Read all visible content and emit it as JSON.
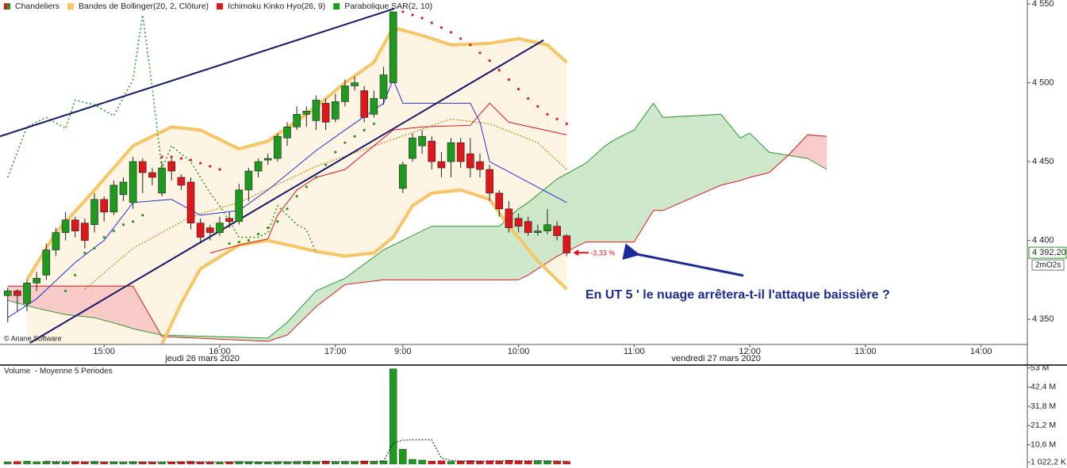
{
  "chart_data": [
    {
      "type": "candlestick",
      "legend": [
        {
          "label": "Chandeliers"
        },
        {
          "label": "Bandes de Bollinger(20, 2, Clôture)",
          "color": "#f5c66a"
        },
        {
          "label": "Ichimoku Kinko Hyo(26, 9)",
          "color": "#e0161b"
        },
        {
          "label": "Parabolique SAR(2, 10)",
          "color": "#1e9b1e"
        }
      ],
      "up_color": "#1e9b1e",
      "down_color": "#e0161b",
      "x": [
        0,
        1,
        2,
        3,
        4,
        5,
        6,
        7,
        8,
        9,
        10,
        11,
        12,
        13,
        14,
        15,
        16,
        17,
        18,
        19,
        20,
        21,
        22,
        23,
        24,
        25,
        26,
        27,
        28,
        29,
        30,
        31,
        32,
        33,
        34,
        35,
        36,
        37,
        38,
        39,
        40,
        41,
        42,
        43,
        44,
        45,
        46,
        47,
        48,
        49,
        50,
        51,
        52,
        53,
        54,
        55,
        56,
        57,
        58
      ],
      "open": [
        4365,
        4368,
        4360,
        4373,
        4378,
        4394,
        4405,
        4413,
        4411,
        4410,
        4426,
        4418,
        4429,
        4424,
        4450,
        4443,
        4430,
        4450,
        4440,
        4437,
        4411,
        4408,
        4405,
        4414,
        4412,
        4432,
        4444,
        4451,
        4452,
        4465,
        4472,
        4480,
        4476,
        4487,
        4477,
        4488,
        4498,
        4495,
        4480,
        4490,
        4500,
        4433,
        4452,
        4460,
        4463,
        4450,
        4450,
        4462,
        4455,
        4450,
        4445,
        4430,
        4420,
        4414,
        4412,
        4405,
        4406,
        4409,
        4403
      ],
      "high": [
        4370,
        4369,
        4375,
        4380,
        4398,
        4408,
        4418,
        4415,
        4414,
        4430,
        4428,
        4438,
        4440,
        4453,
        4452,
        4446,
        4450,
        4452,
        4442,
        4440,
        4414,
        4410,
        4415,
        4418,
        4436,
        4446,
        4452,
        4455,
        4468,
        4475,
        4485,
        4485,
        4492,
        4490,
        4493,
        4502,
        4504,
        4498,
        4495,
        4510,
        4545,
        4450,
        4468,
        4470,
        4466,
        4456,
        4465,
        4465,
        4465,
        4455,
        4448,
        4432,
        4425,
        4417,
        4415,
        4410,
        4420,
        4412,
        4404
      ],
      "low": [
        4348,
        4355,
        4355,
        4368,
        4375,
        4390,
        4400,
        4402,
        4395,
        4405,
        4412,
        4416,
        4425,
        4420,
        4430,
        4435,
        4428,
        4438,
        4432,
        4407,
        4398,
        4400,
        4403,
        4408,
        4410,
        4425,
        4440,
        4448,
        4450,
        4460,
        4470,
        4472,
        4470,
        4470,
        4475,
        4485,
        4495,
        4475,
        4478,
        4486,
        4500,
        4430,
        4450,
        4455,
        4445,
        4440,
        4440,
        4446,
        4440,
        4440,
        4425,
        4415,
        4405,
        4405,
        4403,
        4403,
        4404,
        4400,
        4390
      ],
      "close": [
        4368,
        4365,
        4373,
        4376,
        4394,
        4405,
        4413,
        4406,
        4400,
        4426,
        4418,
        4435,
        4437,
        4450,
        4443,
        4440,
        4446,
        4444,
        4435,
        4411,
        4402,
        4405,
        4411,
        4412,
        4432,
        4444,
        4450,
        4452,
        4466,
        4472,
        4480,
        4482,
        4489,
        4475,
        4488,
        4498,
        4500,
        4478,
        4490,
        4505,
        4545,
        4448,
        4465,
        4466,
        4450,
        4446,
        4462,
        4450,
        4446,
        4445,
        4430,
        4420,
        4408,
        4409,
        4405,
        4406,
        4410,
        4403,
        4392
      ],
      "xlim": [
        -0.8,
        105.8
      ],
      "xticks": [
        {
          "value": 10,
          "label": "15:00"
        },
        {
          "value": 22,
          "label": "16:00"
        },
        {
          "value": 34,
          "label": "17:00"
        },
        {
          "value": 41,
          "label": "9:00"
        },
        {
          "value": 53,
          "label": "10:00"
        },
        {
          "value": 65,
          "label": "11:00"
        },
        {
          "value": 77,
          "label": "12:00"
        },
        {
          "value": 89,
          "label": "13:00"
        },
        {
          "value": 101,
          "label": "14:00"
        }
      ],
      "date_labels": [
        {
          "value": 20.2,
          "label": "jeudi 26 mars 2020"
        },
        {
          "value": 73.5,
          "label": "vendredi 27 mars 2020"
        }
      ],
      "ylim": [
        4334,
        4552.5
      ],
      "yticks": [
        {
          "value": 4350,
          "label": "4 350"
        },
        {
          "value": 4400,
          "label": "4 400"
        },
        {
          "value": 4450,
          "label": "4 450"
        },
        {
          "value": 4500,
          "label": "4 500"
        },
        {
          "value": 4550,
          "label": "4 550"
        }
      ],
      "bollinger": {
        "color": "#f7c563",
        "middle_color": "#b8860b",
        "fill_color": "#fdf4e3",
        "upper": {
          "x": [
            2,
            5,
            9,
            13,
            17,
            20,
            24,
            27,
            31,
            35,
            38,
            40,
            43,
            46,
            50,
            53,
            56,
            58
          ],
          "values": [
            4375,
            4405,
            4432,
            4460,
            4472,
            4470,
            4458,
            4463,
            4480,
            4500,
            4513,
            4535,
            4530,
            4524,
            4525,
            4528,
            4524,
            4513
          ]
        },
        "lower": {
          "x": [
            16,
            18,
            20,
            24,
            27,
            32,
            35,
            38,
            40,
            42,
            44,
            47,
            50,
            52,
            55,
            58
          ],
          "values": [
            4334,
            4360,
            4382,
            4397,
            4400,
            4393,
            4390,
            4392,
            4402,
            4422,
            4430,
            4432,
            4426,
            4409,
            4387,
            4369
          ]
        },
        "middle": {
          "x": [
            8,
            13,
            19,
            24,
            32,
            39,
            46,
            50,
            55,
            58
          ],
          "values": [
            4369,
            4395,
            4415,
            4424,
            4447,
            4462,
            4477,
            4474,
            4462,
            4445
          ]
        }
      },
      "ichimoku": {
        "tenkan": {
          "color": "#2233dd",
          "x": [
            0,
            3,
            7,
            10,
            13,
            17,
            20,
            24,
            27,
            32,
            35,
            39,
            40,
            41,
            48,
            49,
            50,
            54,
            58
          ],
          "values": [
            4351,
            4363,
            4386,
            4400,
            4424,
            4426,
            4416,
            4419,
            4432,
            4457,
            4470,
            4487,
            4502,
            4487,
            4487,
            4475,
            4450,
            4437,
            4424
          ]
        },
        "kijun": {
          "color": "#e0161b",
          "x": [
            21,
            24,
            27,
            28,
            30,
            32,
            35,
            40,
            43,
            48,
            50,
            52,
            58
          ],
          "values": [
            4392,
            4397,
            4401,
            4416,
            4432,
            4440,
            4445,
            4470,
            4472,
            4473,
            4487,
            4475,
            4467
          ]
        },
        "chikou": {
          "color": "#1e9b1e",
          "x": [
            0,
            2,
            4,
            6,
            7,
            9,
            11,
            13,
            14,
            15,
            16,
            17,
            19,
            21,
            22,
            24,
            26,
            27,
            28,
            30,
            31,
            32
          ],
          "values": [
            4440,
            4472,
            4478,
            4471,
            4489,
            4486,
            4479,
            4502,
            4543,
            4497,
            4445,
            4460,
            4450,
            4430,
            4422,
            4402,
            4402,
            4405,
            4422,
            4410,
            4407,
            4392
          ]
        },
        "cloud": {
          "span_a_color": "#2a9a2a",
          "span_b_color": "#e0161b",
          "up_color": "#c5e4c3",
          "down_color": "#f7c3c3",
          "x": [
            0,
            3,
            6,
            9,
            12,
            13,
            16,
            27,
            29,
            32,
            35,
            39,
            44,
            51,
            53,
            54,
            57,
            60,
            62,
            63,
            65,
            67,
            68,
            74,
            76,
            77,
            79,
            81,
            83,
            85
          ],
          "span_a": [
            4362,
            4357,
            4353,
            4351,
            4346,
            4344,
            4340,
            4338,
            4348,
            4368,
            4376,
            4394,
            4409,
            4409,
            4420,
            4424,
            4439,
            4449,
            4460,
            4464,
            4470,
            4487,
            4478,
            4480,
            4465,
            4468,
            4456,
            4454,
            4452,
            4445
          ],
          "span_b": [
            4371,
            4371,
            4371,
            4371,
            4371,
            4371,
            4339,
            4336,
            4340,
            4358,
            4372,
            4375,
            4375,
            4375,
            4375,
            4378,
            4390,
            4399,
            4399,
            4399,
            4399,
            4419,
            4419,
            4435,
            4438,
            4440,
            4443,
            4454,
            4467,
            4466
          ]
        }
      },
      "sar": {
        "x": [
          6,
          7,
          8,
          9,
          10,
          11,
          12,
          13,
          14,
          16,
          17,
          18,
          19,
          20,
          21,
          22,
          23,
          24,
          25,
          26,
          27,
          28,
          29,
          30,
          31,
          32,
          33,
          34,
          35,
          36,
          37,
          38,
          41,
          42,
          43,
          44,
          45,
          46,
          47,
          48,
          49,
          50,
          51,
          52,
          53,
          54,
          55,
          56,
          57,
          58
        ],
        "values": [
          4368,
          4378,
          4392,
          4395,
          4402,
          4406,
          4410,
          4412,
          4416,
          4453,
          4453,
          4452,
          4451,
          4449,
          4447,
          4445,
          4398,
          4399,
          4400,
          4404,
          4408,
          4412,
          4420,
          4428,
          4434,
          4440,
          4448,
          4456,
          4462,
          4466,
          4470,
          4474,
          4545,
          4543,
          4541,
          4538,
          4535,
          4532,
          4528,
          4524,
          4519,
          4514,
          4508,
          4502,
          4496,
          4490,
          4485,
          4480,
          4477,
          4474
        ]
      },
      "trendline_color": "#15186b",
      "trendlines": [
        {
          "x": [
            -0.8,
            40.1
          ],
          "values": [
            4466,
            4547
          ]
        },
        {
          "x": [
            2.3,
            55.6
          ],
          "values": [
            4335,
            4527
          ]
        }
      ],
      "last_price": {
        "value": 4392.2,
        "label": "4 392,20"
      },
      "timer": "2mO2s",
      "change_label": "-3,33 %",
      "annotation": "En UT 5 ' le nuage arrêtera-t-il l'attaque baissière ?",
      "copyright": "© Ariane Software"
    },
    {
      "type": "volume",
      "title": "Volume  - Moyenne 5 Periodes",
      "values": [
        1.2,
        1.4,
        1.6,
        1.3,
        1.5,
        1.2,
        1.1,
        1.3,
        1.2,
        1.4,
        1.1,
        1.2,
        1.0,
        1.3,
        1.2,
        1.1,
        1.0,
        1.2,
        1.3,
        1.5,
        1.2,
        1.1,
        1.0,
        1.2,
        1.4,
        1.3,
        1.2,
        1.1,
        1.3,
        1.2,
        1.4,
        1.5,
        1.3,
        1.6,
        1.2,
        1.4,
        1.3,
        1.7,
        1.5,
        1.8,
        52.5,
        8.2,
        2.6,
        2.2,
        1.6,
        1.8,
        1.5,
        1.7,
        1.9,
        1.6,
        1.8,
        1.7,
        2.1,
        1.8,
        1.6,
        1.9,
        1.7,
        1.5,
        1.4
      ],
      "ma": [
        null,
        null,
        null,
        null,
        1.4,
        1.4,
        1.34,
        1.32,
        1.26,
        1.24,
        1.22,
        1.24,
        1.18,
        1.24,
        1.2,
        1.16,
        1.16,
        1.16,
        1.16,
        1.22,
        1.24,
        1.26,
        1.22,
        1.2,
        1.24,
        1.24,
        1.22,
        1.24,
        1.26,
        1.22,
        1.24,
        1.3,
        1.34,
        1.42,
        1.4,
        1.4,
        1.36,
        1.44,
        1.42,
        1.54,
        11.76,
        13.14,
        13.32,
        13.46,
        13.42,
        3.28,
        1.98,
        1.76,
        1.7,
        1.7,
        1.7,
        1.74,
        1.82,
        1.78,
        1.8,
        1.82,
        1.82,
        1.7,
        1.62
      ],
      "ylim": [
        0,
        55
      ],
      "yticks": [
        {
          "value": 53,
          "label": "53 M"
        },
        {
          "value": 42.4,
          "label": "42,4 M"
        },
        {
          "value": 31.8,
          "label": "31,8 M"
        },
        {
          "value": 21.2,
          "label": "21,2 M"
        },
        {
          "value": 10.6,
          "label": "10,6 M"
        },
        {
          "value": 1.0222,
          "label": "1 022,2 K"
        }
      ]
    }
  ]
}
